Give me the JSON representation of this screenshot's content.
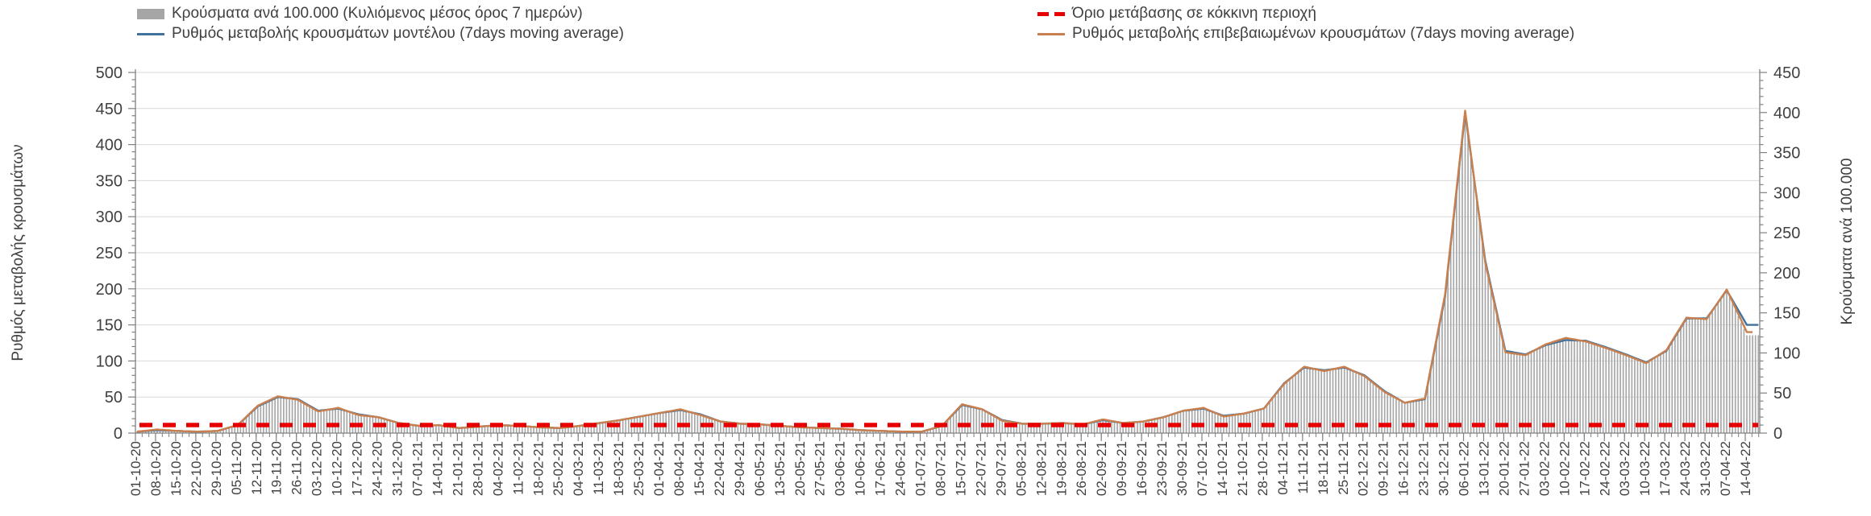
{
  "legend": {
    "bars": "Κρούσματα ανά 100.000 (Κυλιόμενος μέσος όρος 7 ημερών)",
    "model": "Ρυθμός μεταβολής κρουσμάτων μοντέλου (7days moving average)",
    "threshold": "Όριο μετάβασης σε κόκκινη περιοχή",
    "confirmed": "Ρυθμός μεταβολής επιβεβαιωμένων κρουσμάτων (7days moving average)"
  },
  "colors": {
    "bars": "#a8a8a8",
    "model_line": "#41719c",
    "confirmed_line": "#c9804e",
    "threshold_line": "#e80000",
    "grid": "#d9d9d9",
    "axis": "#808080",
    "text": "#404040"
  },
  "chart_data": {
    "type": "bar+line",
    "title": "",
    "grid": "horizontal",
    "legend_position": "top",
    "left_axis": {
      "label": "Ρυθμός μεταβολής κρουσμάτων",
      "min": 0,
      "max": 500,
      "tick_step": 50
    },
    "right_axis": {
      "label": "Κρούσματα ανά 100.000",
      "min": 0,
      "max": 450,
      "tick_step": 50
    },
    "categories": [
      "01-10-20",
      "08-10-20",
      "15-10-20",
      "22-10-20",
      "29-10-20",
      "05-11-20",
      "12-11-20",
      "19-11-20",
      "26-11-20",
      "03-12-20",
      "10-12-20",
      "17-12-20",
      "24-12-20",
      "31-12-20",
      "07-01-21",
      "14-01-21",
      "21-01-21",
      "28-01-21",
      "04-02-21",
      "11-02-21",
      "18-02-21",
      "25-02-21",
      "04-03-21",
      "11-03-21",
      "18-03-21",
      "25-03-21",
      "01-04-21",
      "08-04-21",
      "15-04-21",
      "22-04-21",
      "29-04-21",
      "06-05-21",
      "13-05-21",
      "20-05-21",
      "27-05-21",
      "03-06-21",
      "10-06-21",
      "17-06-21",
      "24-06-21",
      "01-07-21",
      "08-07-21",
      "15-07-21",
      "22-07-21",
      "29-07-21",
      "05-08-21",
      "12-08-21",
      "19-08-21",
      "26-08-21",
      "02-09-21",
      "09-09-21",
      "16-09-21",
      "23-09-21",
      "30-09-21",
      "07-10-21",
      "14-10-21",
      "21-10-21",
      "28-10-21",
      "04-11-21",
      "11-11-21",
      "18-11-21",
      "25-11-21",
      "02-12-21",
      "09-12-21",
      "16-12-21",
      "23-12-21",
      "30-12-21",
      "06-01-22",
      "13-01-22",
      "20-01-22",
      "27-01-22",
      "03-02-22",
      "10-02-22",
      "17-02-22",
      "24-02-22",
      "03-03-22",
      "10-03-22",
      "17-03-22",
      "24-03-22",
      "31-03-22",
      "07-04-22",
      "14-04-22"
    ],
    "series": [
      {
        "name": "Κρούσματα ανά 100.000 (Κυλιόμενος μέσος όρος 7 ημερών)",
        "type": "bar",
        "axis": "right",
        "values": [
          2,
          4,
          3,
          2,
          3,
          10,
          33,
          45,
          42,
          28,
          31,
          23,
          20,
          13,
          9,
          10,
          6,
          8,
          10,
          9,
          7,
          6,
          9,
          13,
          16,
          21,
          25,
          29,
          23,
          14,
          12,
          11,
          9,
          7,
          6,
          5,
          4,
          3,
          2,
          2,
          9,
          35,
          30,
          16,
          12,
          12,
          13,
          11,
          16,
          13,
          14,
          20,
          28,
          31,
          22,
          24,
          31,
          62,
          82,
          78,
          82,
          72,
          52,
          38,
          42,
          170,
          400,
          215,
          103,
          98,
          110,
          116,
          115,
          107,
          98,
          88,
          103,
          143,
          143,
          178,
          122
        ]
      },
      {
        "name": "Ρυθμός μεταβολής κρουσμάτων μοντέλου (7days moving average)",
        "type": "line",
        "axis": "left",
        "values": [
          2,
          4,
          3,
          2,
          3,
          11,
          37,
          50,
          47,
          31,
          34,
          26,
          22,
          14,
          10,
          11,
          7,
          9,
          11,
          10,
          8,
          7,
          10,
          14,
          18,
          23,
          28,
          32,
          26,
          16,
          13,
          12,
          10,
          8,
          7,
          6,
          4,
          3,
          2,
          2,
          10,
          39,
          33,
          18,
          13,
          13,
          14,
          12,
          18,
          14,
          16,
          22,
          31,
          34,
          24,
          27,
          34,
          69,
          91,
          87,
          91,
          80,
          58,
          42,
          47,
          189,
          444,
          239,
          114,
          109,
          122,
          129,
          128,
          119,
          109,
          98,
          114,
          159,
          159,
          198,
          150
        ]
      },
      {
        "name": "Ρυθμός μεταβολής επιβεβαιωμένων κρουσμάτων (7days moving average)",
        "type": "line",
        "axis": "left",
        "values": [
          2,
          5,
          3,
          2,
          3,
          11,
          38,
          51,
          46,
          30,
          35,
          25,
          22,
          14,
          10,
          11,
          7,
          9,
          11,
          10,
          8,
          7,
          10,
          14,
          18,
          23,
          28,
          33,
          25,
          16,
          13,
          12,
          10,
          8,
          7,
          6,
          4,
          3,
          2,
          2,
          10,
          40,
          33,
          17,
          13,
          13,
          14,
          12,
          19,
          14,
          16,
          22,
          31,
          35,
          23,
          27,
          34,
          68,
          92,
          86,
          92,
          79,
          57,
          42,
          48,
          192,
          447,
          236,
          112,
          108,
          123,
          132,
          127,
          118,
          108,
          97,
          115,
          160,
          158,
          199,
          140
        ]
      },
      {
        "name": "Όριο μετάβασης σε κόκκινη περιοχή",
        "type": "threshold",
        "axis": "right",
        "value": 10
      }
    ]
  }
}
